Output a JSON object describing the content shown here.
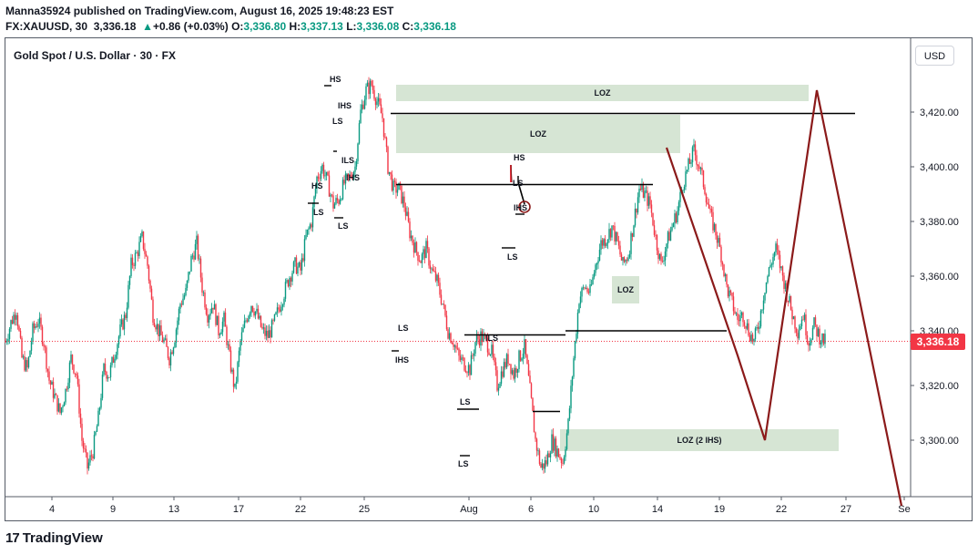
{
  "header": {
    "publisher_line": "Manna35924 published on TradingView.com, August 16, 2025 19:48:23 EST",
    "symbol": "FX:XAUUSD, 30",
    "last": "3,336.18",
    "change": "+0.86 (+0.03%)",
    "o_label": "O:",
    "o": "3,336.80",
    "h_label": "H:",
    "h": "3,337.13",
    "l_label": "L:",
    "l": "3,336.08",
    "c_label": "C:",
    "c": "3,336.18"
  },
  "chart_title": "Gold Spot / U.S. Dollar · 30 · FX",
  "currency_button": "USD",
  "current_price_label": "3,336.18",
  "footer": {
    "brand": "TradingView",
    "logo_text": "17"
  },
  "colors": {
    "up": "#089981",
    "down": "#f23645",
    "zone": "#cfe0cc",
    "projection": "#8b1a1a",
    "level": "#000000"
  },
  "chart_data": {
    "type": "candlestick",
    "title": "Gold Spot / U.S. Dollar · 30 · FX",
    "y_ticks": [
      3420,
      3400,
      3380,
      3360,
      3340,
      3320,
      3300
    ],
    "y_tick_labels": [
      "3,420.00",
      "3,400.00",
      "3,380.00",
      "3,360.00",
      "3,340.00",
      "3,320.00",
      "3,300.00"
    ],
    "x_tick_labels": [
      "4",
      "9",
      "13",
      "17",
      "22",
      "25",
      "Aug",
      "6",
      "10",
      "14",
      "19",
      "22",
      "27",
      "Se"
    ],
    "ylim": [
      3278,
      3440
    ],
    "current_price": 3336.18,
    "price_path": [
      [
        0,
        3336
      ],
      [
        2,
        3343
      ],
      [
        4,
        3348
      ],
      [
        6,
        3330
      ],
      [
        8,
        3326
      ],
      [
        10,
        3340
      ],
      [
        12,
        3344
      ],
      [
        14,
        3336
      ],
      [
        16,
        3322
      ],
      [
        18,
        3316
      ],
      [
        20,
        3310
      ],
      [
        22,
        3318
      ],
      [
        24,
        3330
      ],
      [
        26,
        3324
      ],
      [
        28,
        3300
      ],
      [
        30,
        3290
      ],
      [
        32,
        3296
      ],
      [
        34,
        3308
      ],
      [
        36,
        3326
      ],
      [
        38,
        3324
      ],
      [
        40,
        3332
      ],
      [
        42,
        3340
      ],
      [
        44,
        3346
      ],
      [
        46,
        3364
      ],
      [
        48,
        3368
      ],
      [
        50,
        3374
      ],
      [
        52,
        3364
      ],
      [
        54,
        3346
      ],
      [
        56,
        3340
      ],
      [
        58,
        3336
      ],
      [
        60,
        3330
      ],
      [
        62,
        3338
      ],
      [
        64,
        3350
      ],
      [
        66,
        3354
      ],
      [
        68,
        3366
      ],
      [
        70,
        3372
      ],
      [
        72,
        3356
      ],
      [
        74,
        3346
      ],
      [
        76,
        3350
      ],
      [
        78,
        3340
      ],
      [
        80,
        3344
      ],
      [
        82,
        3330
      ],
      [
        84,
        3318
      ],
      [
        86,
        3336
      ],
      [
        88,
        3344
      ],
      [
        90,
        3350
      ],
      [
        92,
        3346
      ],
      [
        94,
        3340
      ],
      [
        96,
        3338
      ],
      [
        98,
        3342
      ],
      [
        100,
        3348
      ],
      [
        102,
        3354
      ],
      [
        104,
        3360
      ],
      [
        106,
        3364
      ],
      [
        108,
        3362
      ],
      [
        110,
        3374
      ],
      [
        112,
        3380
      ],
      [
        114,
        3396
      ],
      [
        116,
        3400
      ],
      [
        118,
        3394
      ],
      [
        120,
        3386
      ],
      [
        122,
        3388
      ],
      [
        124,
        3394
      ],
      [
        126,
        3396
      ],
      [
        128,
        3400
      ],
      [
        130,
        3420
      ],
      [
        132,
        3428
      ],
      [
        134,
        3430
      ],
      [
        136,
        3424
      ],
      [
        138,
        3418
      ],
      [
        140,
        3400
      ],
      [
        142,
        3392
      ],
      [
        144,
        3392
      ],
      [
        146,
        3386
      ],
      [
        148,
        3376
      ],
      [
        150,
        3370
      ],
      [
        152,
        3366
      ],
      [
        154,
        3370
      ],
      [
        156,
        3362
      ],
      [
        158,
        3358
      ],
      [
        160,
        3350
      ],
      [
        162,
        3340
      ],
      [
        164,
        3336
      ],
      [
        166,
        3330
      ],
      [
        168,
        3328
      ],
      [
        170,
        3326
      ],
      [
        172,
        3336
      ],
      [
        174,
        3338
      ],
      [
        176,
        3336
      ],
      [
        178,
        3332
      ],
      [
        180,
        3320
      ],
      [
        182,
        3326
      ],
      [
        184,
        3330
      ],
      [
        186,
        3324
      ],
      [
        188,
        3330
      ],
      [
        190,
        3334
      ],
      [
        192,
        3318
      ],
      [
        194,
        3300
      ],
      [
        196,
        3290
      ],
      [
        198,
        3292
      ],
      [
        200,
        3300
      ],
      [
        202,
        3296
      ],
      [
        204,
        3292
      ],
      [
        206,
        3306
      ],
      [
        208,
        3330
      ],
      [
        210,
        3352
      ],
      [
        212,
        3356
      ],
      [
        214,
        3354
      ],
      [
        216,
        3364
      ],
      [
        218,
        3372
      ],
      [
        220,
        3374
      ],
      [
        222,
        3378
      ],
      [
        224,
        3372
      ],
      [
        226,
        3364
      ],
      [
        228,
        3368
      ],
      [
        230,
        3380
      ],
      [
        232,
        3392
      ],
      [
        234,
        3390
      ],
      [
        236,
        3386
      ],
      [
        238,
        3374
      ],
      [
        240,
        3364
      ],
      [
        242,
        3372
      ],
      [
        244,
        3378
      ],
      [
        246,
        3384
      ],
      [
        248,
        3394
      ],
      [
        250,
        3400
      ],
      [
        252,
        3406
      ],
      [
        254,
        3400
      ],
      [
        256,
        3392
      ],
      [
        258,
        3382
      ],
      [
        260,
        3376
      ],
      [
        262,
        3368
      ],
      [
        264,
        3356
      ],
      [
        266,
        3350
      ],
      [
        268,
        3344
      ],
      [
        270,
        3346
      ],
      [
        272,
        3340
      ],
      [
        274,
        3336
      ],
      [
        276,
        3344
      ],
      [
        278,
        3356
      ],
      [
        280,
        3364
      ],
      [
        282,
        3370
      ],
      [
        284,
        3362
      ],
      [
        286,
        3354
      ],
      [
        288,
        3346
      ],
      [
        290,
        3340
      ],
      [
        292,
        3346
      ],
      [
        294,
        3336
      ],
      [
        296,
        3342
      ],
      [
        298,
        3338
      ],
      [
        300,
        3336
      ]
    ],
    "annotations": [
      {
        "type": "zone",
        "label": "LOZ",
        "x1": 143,
        "x2": 294,
        "ylo": 3424,
        "yhi": 3430
      },
      {
        "type": "zone",
        "label": "LOZ",
        "x1": 143,
        "x2": 247,
        "ylo": 3405,
        "yhi": 3419
      },
      {
        "type": "zone",
        "label": "LOZ",
        "x1": 222,
        "x2": 232,
        "ylo": 3350,
        "yhi": 3360
      },
      {
        "type": "zone",
        "label": "LOZ (2 IHS)",
        "x1": 203,
        "x2": 305,
        "ylo": 3296,
        "yhi": 3304
      },
      {
        "type": "level",
        "x1": 141,
        "x2": 311,
        "y": 3419.5
      },
      {
        "type": "level",
        "x1": 143,
        "x2": 237,
        "y": 3393.5
      },
      {
        "type": "level",
        "x1": 168,
        "x2": 205,
        "y": 3338.5
      },
      {
        "type": "level",
        "x1": 205,
        "x2": 264,
        "y": 3340
      },
      {
        "type": "level",
        "x1": 193,
        "x2": 203,
        "y": 3310.5
      }
    ],
    "pattern_labels": [
      "HS",
      "IHS",
      "LS",
      "LOZ",
      "HS",
      "LS",
      "ILS",
      "LS",
      "IHS",
      "LS",
      "IHS",
      "LS",
      "LS",
      "ILS",
      "HS",
      "LS",
      "IHS",
      "LS",
      "LOZ",
      "LOZ (2 IHS)"
    ],
    "projection": {
      "x": [
        242,
        268,
        278,
        297,
        328
      ],
      "y": [
        3407,
        3331,
        3300,
        3428,
        3276
      ]
    }
  }
}
